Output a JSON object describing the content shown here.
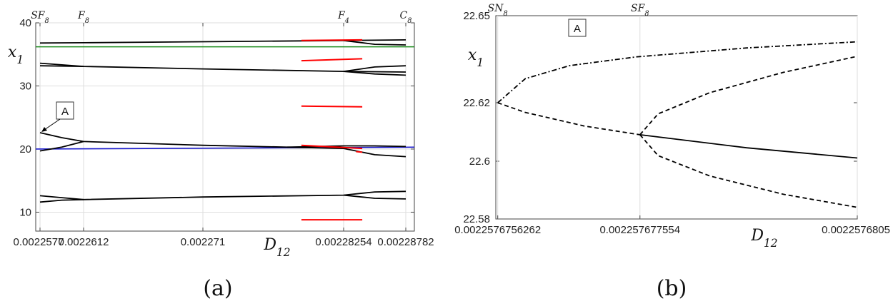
{
  "chart_data": [
    {
      "type": "line",
      "panel_label": "(a)",
      "xlabel": "D",
      "xlabel_sub": "12",
      "ylabel": "x",
      "ylabel_sub": "1",
      "ylim": [
        7,
        40
      ],
      "yticks": [
        10,
        20,
        30,
        40
      ],
      "xticks": [
        "0.0022577",
        "0.0022612",
        "0.002271",
        "0.00228254",
        "0.00228782"
      ],
      "top_labels": [
        {
          "text": "SF",
          "sub": "8",
          "tick": 0
        },
        {
          "text": "F",
          "sub": "8",
          "tick": 1
        },
        {
          "text": "F",
          "sub": "4",
          "tick": 3
        },
        {
          "text": "C",
          "sub": "8",
          "tick": 4
        }
      ],
      "annotation": "A",
      "hlines": [
        {
          "color": "#1a8a1a",
          "y": 36.2
        },
        {
          "color": "#1a1acc",
          "y_start": 20.0,
          "y_end": 20.3
        }
      ],
      "series": [
        {
          "color": "#000000",
          "style": "solid",
          "points": [
            [
              0,
              36.8
            ],
            [
              1,
              36.85
            ],
            [
              2,
              37.0
            ],
            [
              3,
              37.2
            ],
            [
              4,
              37.3
            ]
          ]
        },
        {
          "color": "#000000",
          "style": "solid",
          "points": [
            [
              0,
              33.6
            ],
            [
              1,
              33.1
            ],
            [
              2,
              32.7
            ],
            [
              3,
              32.3
            ],
            [
              4,
              32.2
            ]
          ]
        },
        {
          "color": "#000000",
          "style": "solid",
          "points": [
            [
              0,
              33.2
            ],
            [
              1,
              33.1
            ]
          ]
        },
        {
          "color": "#000000",
          "style": "solid",
          "points": [
            [
              0,
              22.6
            ],
            [
              0.5,
              21.8
            ],
            [
              1,
              21.2
            ],
            [
              2,
              20.6
            ],
            [
              2.6,
              20.3
            ],
            [
              3,
              20.1
            ],
            [
              3.5,
              19.1
            ],
            [
              4,
              18.8
            ]
          ]
        },
        {
          "color": "#000000",
          "style": "solid",
          "points": [
            [
              0,
              19.7
            ],
            [
              0.5,
              20.3
            ],
            [
              1,
              21.2
            ]
          ]
        },
        {
          "color": "#000000",
          "style": "solid",
          "points": [
            [
              2.6,
              20.3
            ],
            [
              3,
              20.5
            ],
            [
              3.5,
              20.5
            ],
            [
              4,
              20.4
            ]
          ]
        },
        {
          "color": "#000000",
          "style": "solid",
          "points": [
            [
              0,
              12.6
            ],
            [
              0.5,
              12.3
            ],
            [
              1,
              12.0
            ],
            [
              2,
              12.4
            ],
            [
              3,
              12.7
            ],
            [
              3.5,
              13.2
            ],
            [
              4,
              13.3
            ]
          ]
        },
        {
          "color": "#000000",
          "style": "solid",
          "points": [
            [
              0,
              11.6
            ],
            [
              0.5,
              11.9
            ],
            [
              1,
              12.0
            ]
          ]
        },
        {
          "color": "#000000",
          "style": "solid",
          "points": [
            [
              3,
              12.7
            ],
            [
              3.5,
              12.2
            ],
            [
              4,
              12.1
            ]
          ]
        },
        {
          "color": "#000000",
          "style": "solid",
          "points": [
            [
              3,
              32.3
            ],
            [
              3.5,
              33.0
            ],
            [
              4,
              33.2
            ]
          ]
        },
        {
          "color": "#000000",
          "style": "solid",
          "points": [
            [
              3,
              32.3
            ],
            [
              3.5,
              31.9
            ],
            [
              4,
              31.7
            ]
          ]
        },
        {
          "color": "#000000",
          "style": "solid",
          "points": [
            [
              3,
              37.2
            ],
            [
              3.5,
              36.6
            ],
            [
              4,
              36.5
            ]
          ]
        },
        {
          "color": "#ff0000",
          "style": "solid",
          "points": [
            [
              2.7,
              37.2
            ],
            [
              3.3,
              37.3
            ]
          ]
        },
        {
          "color": "#ff0000",
          "style": "solid",
          "points": [
            [
              2.7,
              34.0
            ],
            [
              3.3,
              34.3
            ]
          ]
        },
        {
          "color": "#ff0000",
          "style": "solid",
          "points": [
            [
              2.7,
              26.8
            ],
            [
              3.3,
              26.7
            ]
          ]
        },
        {
          "color": "#ff0000",
          "style": "solid",
          "points": [
            [
              2.7,
              20.6
            ],
            [
              3.3,
              20.1
            ]
          ]
        },
        {
          "color": "#ff0000",
          "style": "solid",
          "points": [
            [
              3.2,
              19.6
            ],
            [
              3.3,
              19.5
            ]
          ]
        },
        {
          "color": "#ff0000",
          "style": "solid",
          "points": [
            [
              2.7,
              8.8
            ],
            [
              3.3,
              8.8
            ]
          ]
        }
      ]
    },
    {
      "type": "line",
      "panel_label": "(b)",
      "xlabel": "D",
      "xlabel_sub": "12",
      "ylabel": "x",
      "ylabel_sub": "1",
      "ylim": [
        22.58,
        22.65
      ],
      "yticks": [
        "22.58",
        "22.6",
        "22.62",
        "22.65"
      ],
      "xlim": [
        0.0022576756,
        0.0022576805
      ],
      "xticks": [
        {
          "value": 0.0022576756262,
          "label": "0.0022576756262"
        },
        {
          "value": 0.002257677554,
          "label": "0.002257677554"
        },
        {
          "value": 0.0022576805,
          "label": "0.0022576805"
        }
      ],
      "top_labels": [
        {
          "text": "SN",
          "sub": "8",
          "x": 0.0022576756262
        },
        {
          "text": "SF",
          "sub": "8",
          "x": 0.002257677554
        }
      ],
      "annotation": "A",
      "series": [
        {
          "style": "dotdash",
          "points": [
            [
              0.0022576756262,
              22.62
            ],
            [
              0.002257676,
              22.6283
            ],
            [
              0.0022576766,
              22.6328
            ],
            [
              0.0022576775,
              22.6358
            ],
            [
              0.002257679,
              22.6389
            ],
            [
              0.0022576805,
              22.641
            ]
          ]
        },
        {
          "style": "dashed",
          "points": [
            [
              0.0022576756262,
              22.62
            ],
            [
              0.002257676,
              22.6167
            ],
            [
              0.0022576768,
              22.612
            ],
            [
              0.002257677554,
              22.609
            ]
          ]
        },
        {
          "style": "dashed",
          "points": [
            [
              0.002257677554,
              22.609
            ],
            [
              0.0022576778,
              22.6162
            ],
            [
              0.0022576785,
              22.6235
            ],
            [
              0.0022576795,
              22.6305
            ],
            [
              0.0022576805,
              22.636
            ]
          ]
        },
        {
          "style": "solid",
          "points": [
            [
              0.002257677554,
              22.609
            ],
            [
              0.002257679,
              22.6045
            ],
            [
              0.0022576805,
              22.601
            ]
          ]
        },
        {
          "style": "dashed",
          "points": [
            [
              0.002257677554,
              22.609
            ],
            [
              0.0022576778,
              22.6018
            ],
            [
              0.0022576785,
              22.5948
            ],
            [
              0.0022576795,
              22.5885
            ],
            [
              0.0022576805,
              22.584
            ]
          ]
        }
      ]
    }
  ]
}
